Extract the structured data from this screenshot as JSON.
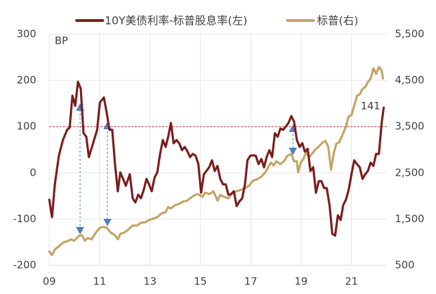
{
  "chart_data": {
    "type": "line",
    "ylabel": "BP",
    "xlim": [
      2009,
      2022.4
    ],
    "xticks": [
      {
        "value": 2009,
        "label": "09"
      },
      {
        "value": 2011,
        "label": "11"
      },
      {
        "value": 2013,
        "label": "13"
      },
      {
        "value": 2015,
        "label": "15"
      },
      {
        "value": 2017,
        "label": "17"
      },
      {
        "value": 2019,
        "label": "19"
      },
      {
        "value": 2021,
        "label": "21"
      }
    ],
    "ylim": [
      -200,
      300
    ],
    "yticks": [
      300,
      200,
      100,
      0,
      -100,
      -200
    ],
    "y2lim": [
      500,
      5500
    ],
    "y2ticks": [
      {
        "value": 5500,
        "label": "5,500"
      },
      {
        "value": 4500,
        "label": "4,500"
      },
      {
        "value": 3500,
        "label": "3,500"
      },
      {
        "value": 2500,
        "label": "2,500"
      },
      {
        "value": 1500,
        "label": "1,500"
      },
      {
        "value": 500,
        "label": "500"
      }
    ],
    "grid": true,
    "legend": "top",
    "reference_line": {
      "value": 100,
      "color": "#c0392b"
    },
    "series": [
      {
        "name": "10Y美债利率-标普股息率(左)",
        "color": "#7a1d1d",
        "axis": "y",
        "x": [
          2009.0,
          2009.11,
          2009.22,
          2009.38,
          2009.54,
          2009.71,
          2009.81,
          2009.92,
          2010.03,
          2010.14,
          2010.25,
          2010.36,
          2010.47,
          2010.57,
          2010.74,
          2010.9,
          2011.01,
          2011.17,
          2011.28,
          2011.39,
          2011.5,
          2011.61,
          2011.72,
          2011.82,
          2011.93,
          2012.04,
          2012.2,
          2012.31,
          2012.42,
          2012.53,
          2012.64,
          2012.75,
          2012.86,
          2012.96,
          2013.07,
          2013.18,
          2013.29,
          2013.4,
          2013.51,
          2013.62,
          2013.72,
          2013.83,
          2013.94,
          2014.05,
          2014.16,
          2014.27,
          2014.38,
          2014.49,
          2014.59,
          2014.7,
          2014.81,
          2014.92,
          2015.03,
          2015.14,
          2015.24,
          2015.35,
          2015.46,
          2015.57,
          2015.68,
          2015.79,
          2015.9,
          2016.01,
          2016.11,
          2016.22,
          2016.33,
          2016.44,
          2016.55,
          2016.66,
          2016.77,
          2016.87,
          2016.98,
          2017.09,
          2017.2,
          2017.31,
          2017.42,
          2017.53,
          2017.63,
          2017.74,
          2017.85,
          2017.96,
          2018.07,
          2018.18,
          2018.29,
          2018.39,
          2018.5,
          2018.61,
          2018.72,
          2018.83,
          2018.94,
          2019.05,
          2019.15,
          2019.26,
          2019.37,
          2019.48,
          2019.59,
          2019.7,
          2019.81,
          2019.91,
          2020.02,
          2020.13,
          2020.24,
          2020.35,
          2020.46,
          2020.57,
          2020.67,
          2020.78,
          2020.89,
          2021.0,
          2021.11,
          2021.22,
          2021.33,
          2021.44,
          2021.55,
          2021.65,
          2021.76,
          2021.87,
          2021.98,
          2022.09,
          2022.2,
          2022.28
        ],
        "values": [
          -58,
          -96,
          -25,
          37,
          71,
          93,
          98,
          167,
          145,
          197,
          182,
          86,
          78,
          34,
          64,
          93,
          152,
          163,
          130,
          93,
          93,
          19,
          -40,
          1,
          -13,
          -28,
          -3,
          -55,
          -64,
          -47,
          -55,
          -37,
          -13,
          -25,
          -40,
          -10,
          1,
          41,
          71,
          56,
          78,
          108,
          64,
          71,
          64,
          49,
          56,
          46,
          34,
          41,
          37,
          19,
          -43,
          -3,
          4,
          12,
          27,
          4,
          15,
          -13,
          -25,
          -25,
          -47,
          -46,
          -40,
          -72,
          -62,
          -55,
          -25,
          27,
          37,
          38,
          37,
          19,
          30,
          12,
          34,
          49,
          34,
          86,
          78,
          96,
          93,
          100,
          108,
          123,
          111,
          71,
          56,
          64,
          46,
          52,
          4,
          12,
          -43,
          -18,
          -18,
          -33,
          -33,
          -70,
          -132,
          -136,
          -92,
          -102,
          -70,
          -58,
          -37,
          -3,
          27,
          19,
          12,
          -13,
          -3,
          4,
          22,
          15,
          41,
          41,
          108,
          141
        ]
      },
      {
        "name": "标普(右)",
        "color": "#c4a467",
        "axis": "y2",
        "x": [
          2009.0,
          2009.11,
          2009.22,
          2009.38,
          2009.54,
          2009.71,
          2009.87,
          2009.98,
          2010.09,
          2010.19,
          2010.3,
          2010.41,
          2010.52,
          2010.68,
          2010.85,
          2011.01,
          2011.12,
          2011.28,
          2011.44,
          2011.61,
          2011.72,
          2011.82,
          2011.99,
          2012.15,
          2012.31,
          2012.48,
          2012.64,
          2012.8,
          2012.96,
          2013.13,
          2013.29,
          2013.45,
          2013.62,
          2013.72,
          2013.83,
          2013.99,
          2014.16,
          2014.32,
          2014.48,
          2014.59,
          2014.75,
          2014.86,
          2014.97,
          2015.08,
          2015.19,
          2015.35,
          2015.52,
          2015.68,
          2015.79,
          2015.95,
          2016.11,
          2016.28,
          2016.44,
          2016.6,
          2016.77,
          2016.93,
          2017.09,
          2017.25,
          2017.42,
          2017.58,
          2017.69,
          2017.8,
          2017.91,
          2018.01,
          2018.18,
          2018.34,
          2018.45,
          2018.61,
          2018.72,
          2018.83,
          2018.88,
          2018.99,
          2019.1,
          2019.21,
          2019.32,
          2019.43,
          2019.54,
          2019.7,
          2019.86,
          2019.97,
          2020.08,
          2020.19,
          2020.29,
          2020.4,
          2020.51,
          2020.67,
          2020.78,
          2020.89,
          2021.0,
          2021.11,
          2021.22,
          2021.33,
          2021.44,
          2021.54,
          2021.65,
          2021.76,
          2021.87,
          2021.98,
          2022.09,
          2022.2,
          2022.25
        ],
        "values": [
          800,
          720,
          840,
          910,
          990,
          1020,
          1060,
          1030,
          1090,
          1140,
          1150,
          1030,
          1090,
          1060,
          1210,
          1310,
          1330,
          1310,
          1210,
          1150,
          1060,
          1180,
          1210,
          1280,
          1360,
          1360,
          1420,
          1430,
          1480,
          1510,
          1540,
          1620,
          1650,
          1760,
          1730,
          1800,
          1830,
          1880,
          1900,
          1950,
          2010,
          2040,
          2020,
          1980,
          2070,
          2040,
          2100,
          1900,
          2020,
          1980,
          1950,
          2070,
          2100,
          2130,
          2170,
          2220,
          2330,
          2360,
          2420,
          2510,
          2620,
          2720,
          2660,
          2750,
          2690,
          2760,
          2870,
          2910,
          2750,
          2750,
          2510,
          2720,
          2810,
          2960,
          2840,
          2910,
          2990,
          3070,
          3160,
          3190,
          3060,
          2570,
          2910,
          3130,
          3160,
          3360,
          3500,
          3720,
          3750,
          3950,
          4170,
          4200,
          4320,
          4350,
          4460,
          4540,
          4760,
          4640,
          4790,
          4720,
          4540
        ]
      }
    ]
  }
}
